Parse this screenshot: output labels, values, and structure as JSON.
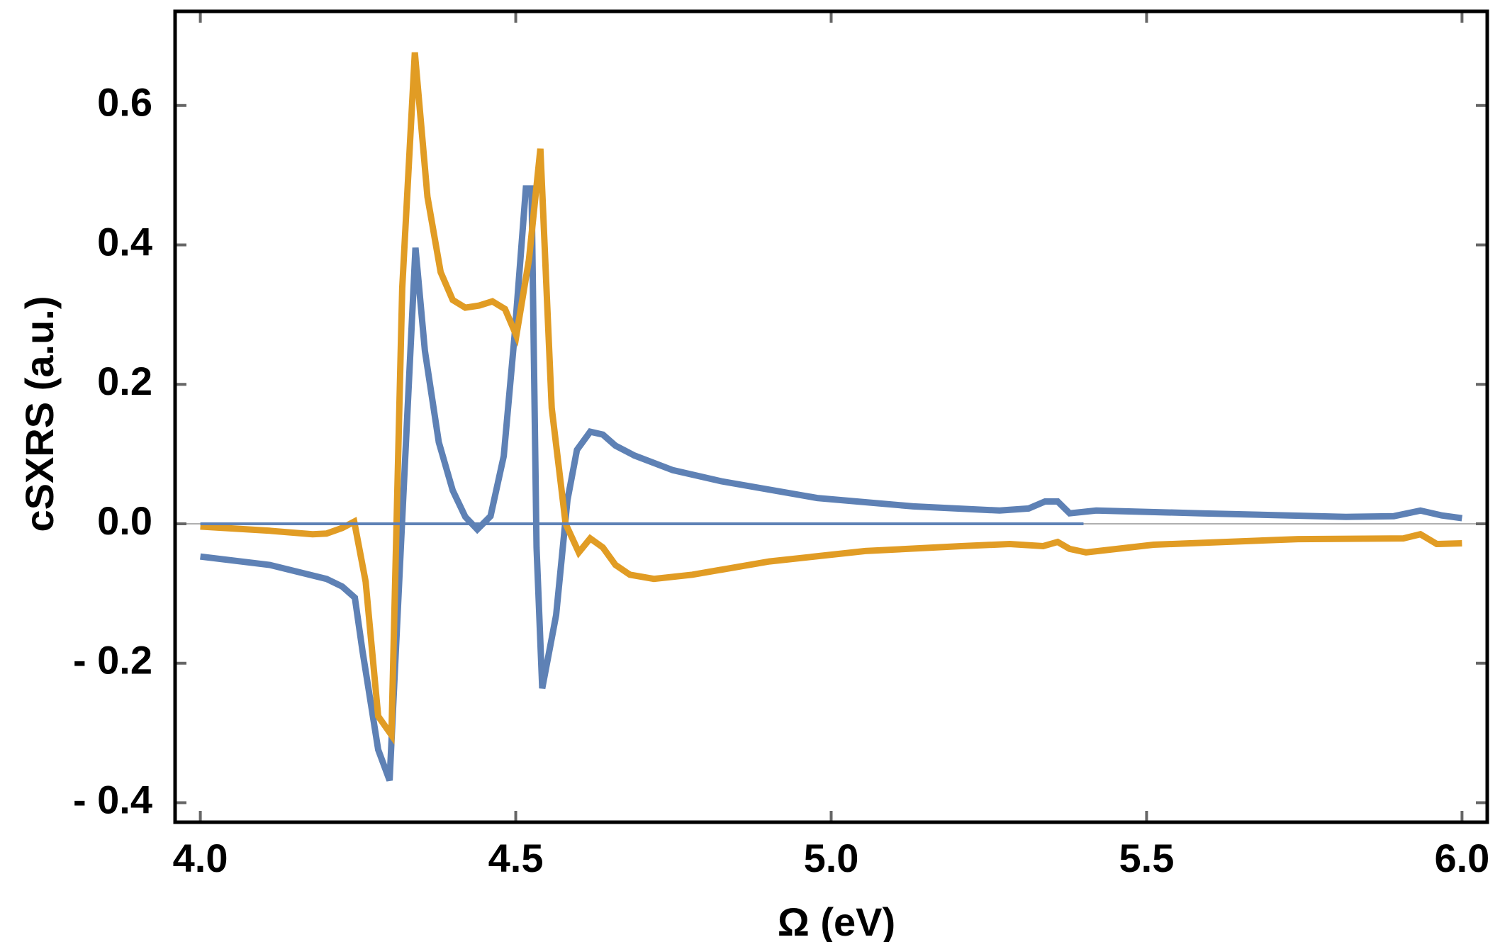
{
  "chart_data": {
    "type": "line",
    "x_label": "Ω (eV)",
    "y_label": "cSXRS (a.u.)",
    "xlim": [
      3.96,
      6.04
    ],
    "ylim": [
      -0.428,
      0.735
    ],
    "xticks": [
      {
        "value": 4,
        "label": "4.0"
      },
      4.5,
      {
        "value": 5,
        "label": "5.0"
      },
      5.5,
      {
        "value": 6,
        "label": "6.0"
      }
    ],
    "yticks": [
      {
        "value": -0.4,
        "label": "- 0.4"
      },
      {
        "value": -0.2,
        "label": "- 0.2"
      },
      {
        "value": 0,
        "label": "0.0"
      },
      0.2,
      0.4,
      0.6
    ],
    "series": [
      {
        "color": "#5e81b5",
        "x": [
          4.0,
          4.11,
          4.2,
          4.225,
          4.245,
          4.257,
          4.282,
          4.3,
          4.32,
          4.341,
          4.356,
          4.378,
          4.4,
          4.42,
          4.439,
          4.46,
          4.481,
          4.498,
          4.516,
          4.525,
          4.533,
          4.542,
          4.564,
          4.582,
          4.597,
          4.618,
          4.638,
          4.658,
          4.688,
          4.749,
          4.826,
          4.978,
          5.13,
          5.267,
          5.313,
          5.339,
          5.359,
          5.378,
          5.42,
          5.587,
          5.816,
          5.892,
          5.934,
          5.968,
          6.0
        ],
        "values": [
          -0.047,
          -0.059,
          -0.079,
          -0.09,
          -0.106,
          -0.182,
          -0.324,
          -0.368,
          0.007,
          0.396,
          0.248,
          0.117,
          0.048,
          0.01,
          -0.008,
          0.011,
          0.097,
          0.269,
          0.481,
          0.481,
          -0.034,
          -0.236,
          -0.131,
          0.034,
          0.106,
          0.132,
          0.128,
          0.112,
          0.098,
          0.077,
          0.061,
          0.037,
          0.025,
          0.019,
          0.022,
          0.032,
          0.032,
          0.015,
          0.019,
          0.015,
          0.01,
          0.011,
          0.019,
          0.012,
          0.008
        ]
      },
      {
        "color": "#e19c24",
        "x": [
          4.0,
          4.11,
          4.178,
          4.2,
          4.225,
          4.244,
          4.262,
          4.282,
          4.303,
          4.32,
          4.34,
          4.36,
          4.381,
          4.4,
          4.42,
          4.442,
          4.463,
          4.483,
          4.501,
          4.521,
          4.539,
          4.557,
          4.579,
          4.6,
          4.618,
          4.638,
          4.658,
          4.681,
          4.719,
          4.78,
          4.902,
          5.054,
          5.206,
          5.283,
          5.336,
          5.359,
          5.378,
          5.404,
          5.511,
          5.74,
          5.907,
          5.934,
          5.96,
          6.0
        ],
        "values": [
          -0.004,
          -0.01,
          -0.015,
          -0.014,
          -0.006,
          0.003,
          -0.083,
          -0.276,
          -0.303,
          0.338,
          0.676,
          0.469,
          0.361,
          0.321,
          0.31,
          0.313,
          0.319,
          0.308,
          0.27,
          0.379,
          0.538,
          0.166,
          0.0,
          -0.041,
          -0.021,
          -0.034,
          -0.059,
          -0.073,
          -0.079,
          -0.073,
          -0.054,
          -0.039,
          -0.032,
          -0.029,
          -0.032,
          -0.026,
          -0.036,
          -0.041,
          -0.03,
          -0.022,
          -0.021,
          -0.015,
          -0.029,
          -0.028
        ]
      },
      {
        "color": "#5e81b5",
        "x": [
          4.0,
          5.4
        ],
        "values": [
          0,
          0
        ]
      }
    ]
  }
}
